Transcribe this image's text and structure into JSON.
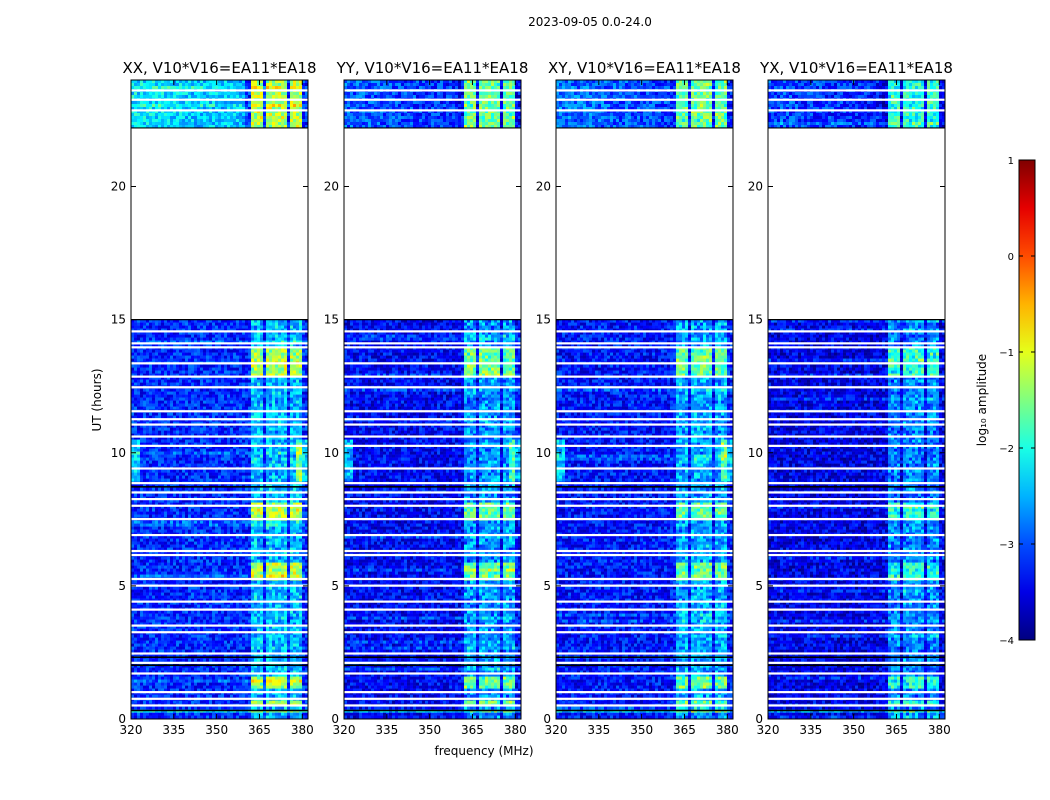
{
  "chart_data": {
    "type": "heatmap",
    "suptitle": "2023-09-05 0.0-24.0",
    "xlabel": "frequency (MHz)",
    "ylabel": "UT (hours)",
    "xlim": [
      320,
      382
    ],
    "ylim": [
      0,
      24
    ],
    "x_ticks": [
      320,
      335,
      350,
      365,
      380
    ],
    "y_ticks": [
      0,
      5,
      10,
      15,
      20
    ],
    "panels": [
      {
        "title": "XX, V10*V16=EA11*EA18",
        "base_level": -3.2
      },
      {
        "title": "YY, V10*V16=EA11*EA18",
        "base_level": -3.4
      },
      {
        "title": "XY, V10*V16=EA11*EA18",
        "base_level": -3.3
      },
      {
        "title": "YX, V10*V16=EA11*EA18",
        "base_level": -3.5
      }
    ],
    "data_gap_hours": [
      15.0,
      22.2
    ],
    "data_segments_hours": [
      [
        0.0,
        15.0
      ],
      [
        22.2,
        24.0
      ]
    ],
    "rfi_bands_mhz": [
      [
        362,
        366
      ],
      [
        367,
        371
      ],
      [
        372,
        375
      ],
      [
        376,
        380
      ]
    ],
    "colorbar": {
      "label": "log₁₀ amplitude",
      "min": -4,
      "max": 1,
      "ticks": [
        1,
        0,
        -1,
        -2,
        -3,
        -4
      ],
      "tick_labels": [
        "1",
        "0",
        "−1",
        "−2",
        "−3",
        "−4"
      ],
      "colormap": "jet"
    }
  }
}
